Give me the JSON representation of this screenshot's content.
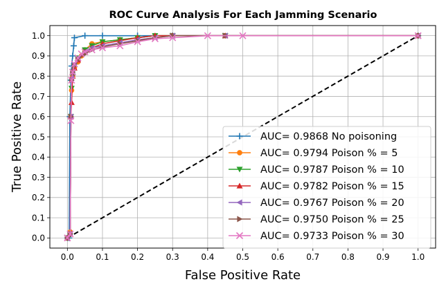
{
  "chart_data": {
    "type": "line",
    "title": "ROC Curve Analysis For Each Jamming Scenario",
    "xlabel": "False Positive Rate",
    "ylabel": "True Positive Rate",
    "xlim": [
      -0.05,
      1.05
    ],
    "ylim": [
      -0.05,
      1.05
    ],
    "x_ticks": [
      0.0,
      0.1,
      0.2,
      0.3,
      0.4,
      0.5,
      0.6,
      0.7,
      0.8,
      0.9,
      1.0
    ],
    "y_ticks": [
      0.0,
      0.1,
      0.2,
      0.3,
      0.4,
      0.5,
      0.6,
      0.7,
      0.8,
      0.9,
      1.0
    ],
    "x_tick_labels": [
      "0.0",
      "0.1",
      "0.2",
      "0.3",
      "0.4",
      "0.5",
      "0.6",
      "0.7",
      "0.8",
      "0.9",
      "1.0"
    ],
    "y_tick_labels": [
      "0.0",
      "0.1",
      "0.2",
      "0.3",
      "0.4",
      "0.5",
      "0.6",
      "0.7",
      "0.8",
      "0.9",
      "1.0"
    ],
    "grid": true,
    "legend_position": "lower-right",
    "reference_line": {
      "x": [
        0,
        1
      ],
      "y": [
        0,
        1
      ],
      "style": "dashed",
      "color": "#000000"
    },
    "series": [
      {
        "name": "AUC= 0.9868 No poisoning",
        "color": "#1f77b4",
        "marker": "plus",
        "x": [
          0.0,
          0.005,
          0.007,
          0.01,
          0.012,
          0.015,
          0.018,
          0.02,
          0.05,
          0.1,
          0.2,
          0.3,
          1.0
        ],
        "y": [
          0.0,
          0.0,
          0.6,
          0.78,
          0.85,
          0.9,
          0.95,
          0.99,
          1.0,
          1.0,
          1.0,
          1.0,
          1.0
        ]
      },
      {
        "name": "AUC= 0.9794 Poison % = 5",
        "color": "#ff7f0e",
        "marker": "circle",
        "x": [
          0.0,
          0.008,
          0.01,
          0.012,
          0.015,
          0.02,
          0.03,
          0.04,
          0.05,
          0.07,
          0.1,
          0.15,
          0.2,
          0.25,
          0.3,
          0.45,
          1.0
        ],
        "y": [
          0.0,
          0.03,
          0.6,
          0.73,
          0.8,
          0.84,
          0.87,
          0.9,
          0.93,
          0.96,
          0.97,
          0.98,
          0.99,
          1.0,
          1.0,
          1.0,
          1.0
        ]
      },
      {
        "name": "AUC= 0.9787 Poison % = 10",
        "color": "#2ca02c",
        "marker": "triangle-down",
        "x": [
          0.0,
          0.008,
          0.01,
          0.012,
          0.015,
          0.02,
          0.03,
          0.05,
          0.07,
          0.1,
          0.15,
          0.2,
          0.25,
          0.3,
          0.45,
          1.0
        ],
        "y": [
          0.0,
          0.02,
          0.6,
          0.74,
          0.8,
          0.85,
          0.89,
          0.93,
          0.95,
          0.97,
          0.98,
          0.99,
          1.0,
          1.0,
          1.0,
          1.0
        ]
      },
      {
        "name": "AUC= 0.9782 Poison % = 15",
        "color": "#d62728",
        "marker": "triangle-up",
        "x": [
          0.0,
          0.008,
          0.01,
          0.012,
          0.015,
          0.02,
          0.03,
          0.05,
          0.07,
          0.1,
          0.15,
          0.2,
          0.25,
          0.3,
          0.45,
          1.0
        ],
        "y": [
          0.0,
          0.02,
          0.6,
          0.67,
          0.8,
          0.84,
          0.88,
          0.92,
          0.94,
          0.96,
          0.975,
          0.99,
          1.0,
          1.0,
          1.0,
          1.0
        ]
      },
      {
        "name": "AUC= 0.9767 Poison % = 20",
        "color": "#9467bd",
        "marker": "triangle-left",
        "x": [
          0.0,
          0.008,
          0.01,
          0.012,
          0.015,
          0.02,
          0.03,
          0.05,
          0.07,
          0.1,
          0.15,
          0.2,
          0.25,
          0.3,
          0.45,
          1.0
        ],
        "y": [
          0.0,
          0.02,
          0.6,
          0.79,
          0.82,
          0.86,
          0.89,
          0.92,
          0.94,
          0.95,
          0.965,
          0.98,
          0.99,
          1.0,
          1.0,
          1.0
        ]
      },
      {
        "name": "AUC= 0.9750 Poison % = 25",
        "color": "#8c564b",
        "marker": "triangle-right",
        "x": [
          0.0,
          0.008,
          0.01,
          0.012,
          0.015,
          0.02,
          0.03,
          0.05,
          0.07,
          0.1,
          0.15,
          0.2,
          0.25,
          0.3,
          0.45,
          1.0
        ],
        "y": [
          0.0,
          0.02,
          0.6,
          0.78,
          0.82,
          0.85,
          0.88,
          0.91,
          0.93,
          0.945,
          0.96,
          0.975,
          0.99,
          1.0,
          1.0,
          1.0
        ]
      },
      {
        "name": "AUC= 0.9733 Poison % = 30",
        "color": "#e377c2",
        "marker": "x",
        "x": [
          0.0,
          0.008,
          0.01,
          0.012,
          0.015,
          0.02,
          0.03,
          0.04,
          0.05,
          0.07,
          0.1,
          0.15,
          0.2,
          0.25,
          0.3,
          0.4,
          0.5,
          1.0
        ],
        "y": [
          0.0,
          0.02,
          0.58,
          0.78,
          0.82,
          0.86,
          0.89,
          0.91,
          0.92,
          0.93,
          0.94,
          0.95,
          0.97,
          0.985,
          0.99,
          1.0,
          1.0,
          1.0
        ]
      }
    ]
  }
}
